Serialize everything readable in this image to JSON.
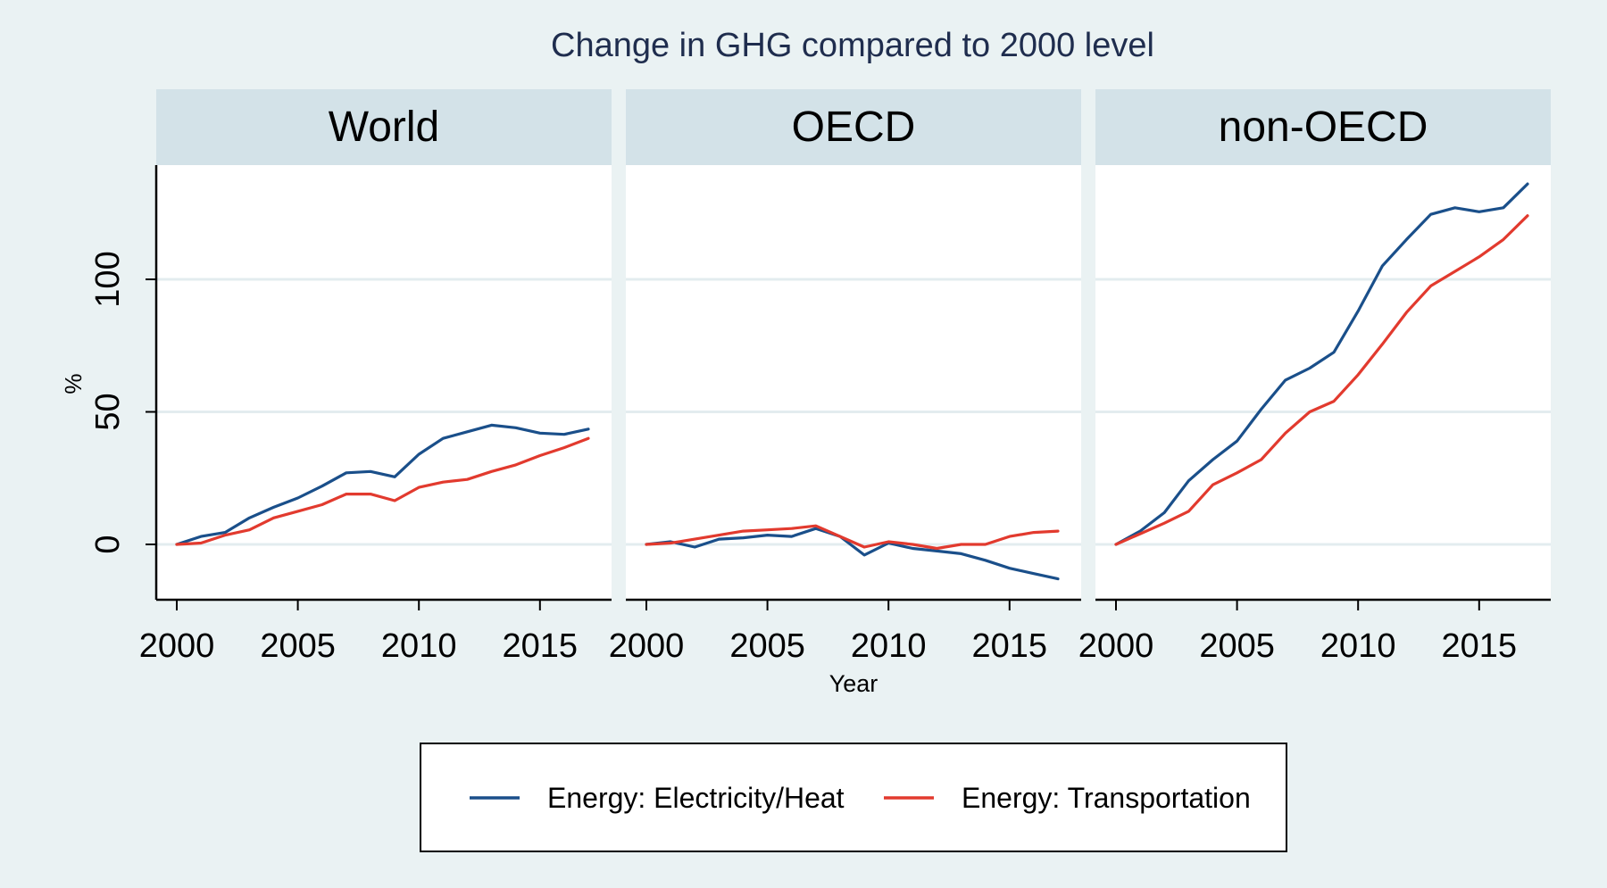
{
  "chart_data": {
    "type": "line",
    "title": "Change in GHG compared to 2000 level",
    "xlabel": "Year",
    "ylabel": "%",
    "xlim": [
      2000,
      2017
    ],
    "ylim": [
      -20,
      140
    ],
    "x_ticks": [
      2000,
      2005,
      2010,
      2015
    ],
    "y_ticks": [
      0,
      50,
      100
    ],
    "grid": true,
    "legend_position": "bottom",
    "x": [
      2000,
      2001,
      2002,
      2003,
      2004,
      2005,
      2006,
      2007,
      2008,
      2009,
      2010,
      2011,
      2012,
      2013,
      2014,
      2015,
      2016,
      2017
    ],
    "series_colors": [
      "#1a4f8a",
      "#e23a2e"
    ],
    "legend": [
      "Energy: Electricity/Heat",
      "Energy: Transportation"
    ],
    "panels": [
      {
        "label": "World",
        "series": [
          {
            "name": "Energy: Electricity/Heat",
            "values": [
              0,
              3,
              4.5,
              10,
              14,
              17.5,
              22,
              27,
              27.5,
              25.5,
              34,
              40,
              42.5,
              45,
              44,
              42,
              41.5,
              43.5
            ]
          },
          {
            "name": "Energy: Transportation",
            "values": [
              0,
              0.5,
              3.5,
              5.5,
              10,
              12.5,
              15,
              19,
              19,
              16.5,
              21.5,
              23.5,
              24.5,
              27.5,
              30,
              33.5,
              36.5,
              40
            ]
          }
        ]
      },
      {
        "label": "OECD",
        "series": [
          {
            "name": "Energy: Electricity/Heat",
            "values": [
              0,
              1,
              -1,
              2,
              2.5,
              3.5,
              3,
              6,
              3,
              -4,
              0.5,
              -1.5,
              -2.5,
              -3.5,
              -6,
              -9,
              -11,
              -13
            ]
          },
          {
            "name": "Energy: Transportation",
            "values": [
              0,
              0.5,
              2,
              3.5,
              5,
              5.5,
              6,
              7,
              3,
              -1,
              1,
              0,
              -1.5,
              0,
              0,
              3,
              4.5,
              5
            ]
          }
        ]
      },
      {
        "label": "non-OECD",
        "series": [
          {
            "name": "Energy: Electricity/Heat",
            "values": [
              0,
              5,
              12,
              24,
              32,
              39,
              51,
              62,
              66.5,
              72.5,
              88,
              105,
              115,
              124.5,
              127,
              125.5,
              127,
              136
            ]
          },
          {
            "name": "Energy: Transportation",
            "values": [
              0,
              4,
              8,
              12.5,
              22.5,
              27,
              32,
              42,
              50,
              54,
              64,
              75.5,
              87.5,
              97.5,
              103,
              108.5,
              115,
              124
            ]
          }
        ]
      }
    ]
  }
}
